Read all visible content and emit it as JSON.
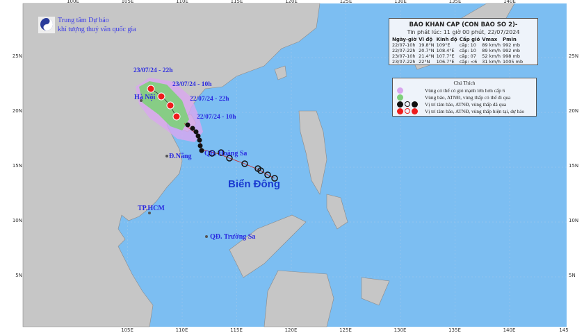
{
  "header": {
    "agency_line1": "Trung tâm Dự báo",
    "agency_line2": "khí tượng thuỷ văn quốc gia",
    "logo_text": "NCHMF"
  },
  "bulletin": {
    "title": "BAO KHAN CAP (CON BAO SO 2)-",
    "issued": "Tin phát lúc: 11 giờ 00 phút, 22/07/2024",
    "columns": [
      "Ngày-giờ",
      "Vĩ độ",
      "Kinh độ",
      "Cấp gió",
      "Vmax",
      "Pmin"
    ],
    "rows": [
      [
        "22/07-10h",
        "19.8°N",
        "109°E",
        "cấp: 10",
        "89 km/h",
        "992 mb"
      ],
      [
        "22/07-22h",
        "20.7°N",
        "108.4°E",
        "cấp: 10",
        "89 km/h",
        "992 mb"
      ],
      [
        "23/07-10h",
        "21.4°N",
        "107.7°E",
        "cấp: 07",
        "52 km/h",
        "998 mb"
      ],
      [
        "23/07-22h",
        "22°N",
        "106.7°E",
        "cấp: <6",
        "31 km/h",
        "1005 mb"
      ]
    ]
  },
  "legend": {
    "title": "Chú Thích",
    "items": [
      {
        "label": "Vùng có thể có gió mạnh lớn hơn cấp 6",
        "color": "#d9a6ef"
      },
      {
        "label": "Vùng bão, ATNĐ, vùng thấp có thể đi qua",
        "color": "#7ed07a"
      },
      {
        "label": "Vị trí tâm bão, ATNĐ, vùng thấp đã qua",
        "color": "#111111"
      },
      {
        "label": "Vị trí tâm bão, ATNĐ, vùng thấp hiện tại, dự báo",
        "color": "#ee1c1c"
      }
    ]
  },
  "map": {
    "ocean_color": "#7cbef2",
    "land_color": "#c6c6c6",
    "lon_labels_top": [
      "100E",
      "105E",
      "110E",
      "115E",
      "120E",
      "125E",
      "130E",
      "135E",
      "140E"
    ],
    "lon_labels_bottom": [
      "105E",
      "110E",
      "115E",
      "120E",
      "125E",
      "130E",
      "135E",
      "140E",
      "145"
    ],
    "lat_labels": [
      "25N",
      "20N",
      "15N",
      "10N",
      "5N"
    ],
    "places": {
      "hanoi": "Hà Nội",
      "danang": "Đ.Nẵng",
      "hcm": "TP.HCM",
      "hoangsa": "QĐ. Hoàng Sa",
      "truongsa": "QĐ. Trường Sa",
      "sea": "Biển Đông"
    },
    "forecast_times": [
      "23/07/24 - 22h",
      "23/07/24 - 10h",
      "22/07/24 - 22h",
      "22/07/24 - 10h"
    ]
  }
}
